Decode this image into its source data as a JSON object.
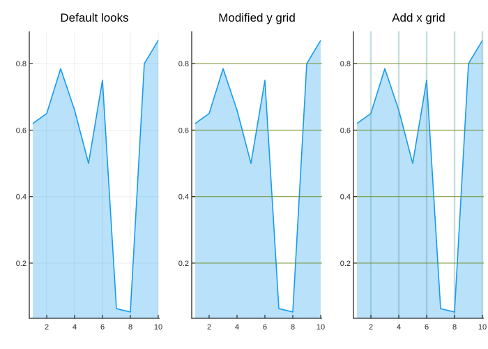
{
  "figure": {
    "background": "#ffffff",
    "style": {
      "series_line_color": "#169bf0",
      "series_fill_color": "#169bf0",
      "series_fill_opacity": 0.3,
      "axis_color": "#2a2a2a",
      "tick_color": "#2a2a2a",
      "tick_label_color": "#262626",
      "title_color": "#000000"
    }
  },
  "chart_data": [
    {
      "type": "area",
      "title": "Default looks",
      "x": [
        1,
        2,
        3,
        4,
        5,
        6,
        7,
        8,
        9,
        10
      ],
      "y": [
        0.62,
        0.65,
        0.785,
        0.66,
        0.5,
        0.75,
        0.063,
        0.053,
        0.8,
        0.87
      ],
      "xlabel": "",
      "ylabel": "",
      "xticks": [
        2,
        4,
        6,
        8,
        10
      ],
      "xtick_labels": [
        "2",
        "4",
        "6",
        "8",
        "10"
      ],
      "yticks": [
        0.2,
        0.4,
        0.6,
        0.8
      ],
      "ytick_labels": [
        "0.2",
        "0.4",
        "0.6",
        "0.8"
      ],
      "xlim": [
        0.75,
        10.1
      ],
      "ylim": [
        0.034,
        0.897
      ],
      "legend": "none",
      "grid": {
        "x": {
          "color": "#1a1a1a",
          "opacity": 0.08,
          "width": 1,
          "front": false
        },
        "y": {
          "color": "#1a1a1a",
          "opacity": 0.08,
          "width": 1,
          "front": false
        }
      }
    },
    {
      "type": "area",
      "title": "Modified y grid",
      "x": [
        1,
        2,
        3,
        4,
        5,
        6,
        7,
        8,
        9,
        10
      ],
      "y": [
        0.62,
        0.65,
        0.785,
        0.66,
        0.5,
        0.75,
        0.063,
        0.053,
        0.8,
        0.87
      ],
      "xlabel": "",
      "ylabel": "",
      "xticks": [
        2,
        4,
        6,
        8,
        10
      ],
      "xtick_labels": [
        "2",
        "4",
        "6",
        "8",
        "10"
      ],
      "yticks": [
        0.2,
        0.4,
        0.6,
        0.8
      ],
      "ytick_labels": [
        "0.2",
        "0.4",
        "0.6",
        "0.8"
      ],
      "xlim": [
        0.75,
        10.1
      ],
      "ylim": [
        0.034,
        0.897
      ],
      "legend": "none",
      "grid": {
        "x": null,
        "y": {
          "color": "#6b8e23",
          "opacity": 0.85,
          "width": 1.1,
          "front": true
        }
      }
    },
    {
      "type": "area",
      "title": "Add x grid",
      "x": [
        1,
        2,
        3,
        4,
        5,
        6,
        7,
        8,
        9,
        10
      ],
      "y": [
        0.62,
        0.65,
        0.785,
        0.66,
        0.5,
        0.75,
        0.063,
        0.053,
        0.8,
        0.87
      ],
      "xlabel": "",
      "ylabel": "",
      "xticks": [
        2,
        4,
        6,
        8,
        10
      ],
      "xtick_labels": [
        "2",
        "4",
        "6",
        "8",
        "10"
      ],
      "yticks": [
        0.2,
        0.4,
        0.6,
        0.8
      ],
      "ytick_labels": [
        "0.2",
        "0.4",
        "0.6",
        "0.8"
      ],
      "xlim": [
        0.75,
        10.1
      ],
      "ylim": [
        0.034,
        0.897
      ],
      "legend": "none",
      "grid": {
        "x": {
          "color": "#5f9ea0",
          "opacity": 0.35,
          "width": 2.4,
          "front": true
        },
        "y": {
          "color": "#6b8e23",
          "opacity": 0.85,
          "width": 1.1,
          "front": true
        }
      }
    }
  ]
}
